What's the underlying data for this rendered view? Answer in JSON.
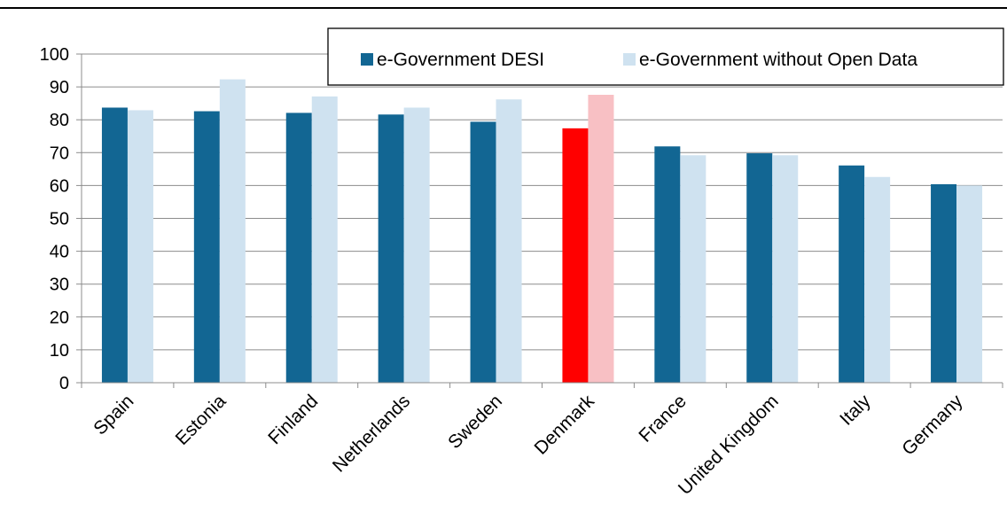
{
  "chart_data": {
    "type": "bar",
    "title": "",
    "xlabel": "",
    "ylabel": "",
    "ylim": [
      0,
      100
    ],
    "yticks": [
      0,
      10,
      20,
      30,
      40,
      50,
      60,
      70,
      80,
      90,
      100
    ],
    "grid": true,
    "legend_position": "top-right",
    "categories": [
      "Spain",
      "Estonia",
      "Finland",
      "Netherlands",
      "Sweden",
      "Denmark",
      "France",
      "United Kingdom",
      "Italy",
      "Germany"
    ],
    "series": [
      {
        "name": "e-Government DESI",
        "color": "#126693",
        "values": [
          83.7,
          82.6,
          82.1,
          81.6,
          79.4,
          77.4,
          71.9,
          69.8,
          66.1,
          60.4
        ]
      },
      {
        "name": "e-Government without Open Data",
        "color": "#cfe2f0",
        "values": [
          82.9,
          92.3,
          87.1,
          83.7,
          86.2,
          87.6,
          69.2,
          69.2,
          62.6,
          60.0
        ]
      }
    ],
    "highlight": {
      "category": "Denmark",
      "colors": [
        "#ff0000",
        "#f8c0c4"
      ]
    }
  }
}
